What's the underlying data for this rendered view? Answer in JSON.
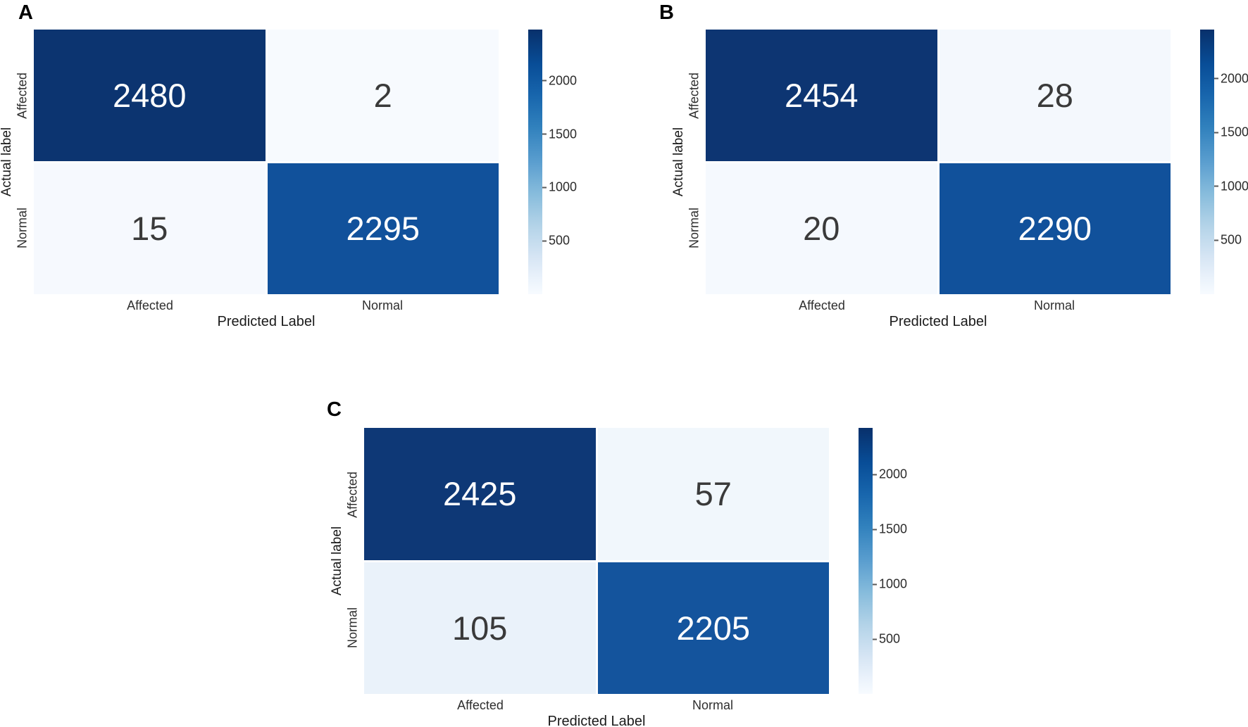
{
  "figure": {
    "background": "#ffffff",
    "colormap": {
      "name": "Blues",
      "low": "#f7fbff",
      "high": "#08306b"
    }
  },
  "chart_data": [
    {
      "type": "heatmap",
      "panel_label": "A",
      "xlabel": "Predicted Label",
      "ylabel": "Actual label",
      "x_categories": [
        "Affected",
        "Normal"
      ],
      "y_categories": [
        "Affected",
        "Normal"
      ],
      "values": [
        [
          2480,
          2
        ],
        [
          15,
          2295
        ]
      ],
      "vmin": 0,
      "vmax": 2480,
      "colorbar_ticks": [
        500,
        1000,
        1500,
        2000
      ],
      "cell_colors": [
        [
          "#0c3470",
          "#f7fafe"
        ],
        [
          "#f6f9fe",
          "#11519b"
        ]
      ],
      "cell_text_colors": [
        [
          "#ffffff",
          "#3a3a3a"
        ],
        [
          "#3a3a3a",
          "#ffffff"
        ]
      ]
    },
    {
      "type": "heatmap",
      "panel_label": "B",
      "xlabel": "Predicted Label",
      "ylabel": "Actual label",
      "x_categories": [
        "Affected",
        "Normal"
      ],
      "y_categories": [
        "Affected",
        "Normal"
      ],
      "values": [
        [
          2454,
          28
        ],
        [
          20,
          2290
        ]
      ],
      "vmin": 0,
      "vmax": 2454,
      "colorbar_ticks": [
        500,
        1000,
        1500,
        2000
      ],
      "cell_colors": [
        [
          "#0d3572",
          "#f4f8fd"
        ],
        [
          "#f5f9fe",
          "#11519b"
        ]
      ],
      "cell_text_colors": [
        [
          "#ffffff",
          "#3a3a3a"
        ],
        [
          "#3a3a3a",
          "#ffffff"
        ]
      ]
    },
    {
      "type": "heatmap",
      "panel_label": "C",
      "xlabel": "Predicted Label",
      "ylabel": "Actual label",
      "x_categories": [
        "Affected",
        "Normal"
      ],
      "y_categories": [
        "Affected",
        "Normal"
      ],
      "values": [
        [
          2425,
          57
        ],
        [
          105,
          2205
        ]
      ],
      "vmin": 0,
      "vmax": 2425,
      "colorbar_ticks": [
        500,
        1000,
        1500,
        2000
      ],
      "cell_colors": [
        [
          "#0e3876",
          "#f1f7fc"
        ],
        [
          "#eaf2fa",
          "#14549d"
        ]
      ],
      "cell_text_colors": [
        [
          "#ffffff",
          "#3a3a3a"
        ],
        [
          "#3a3a3a",
          "#ffffff"
        ]
      ]
    }
  ]
}
